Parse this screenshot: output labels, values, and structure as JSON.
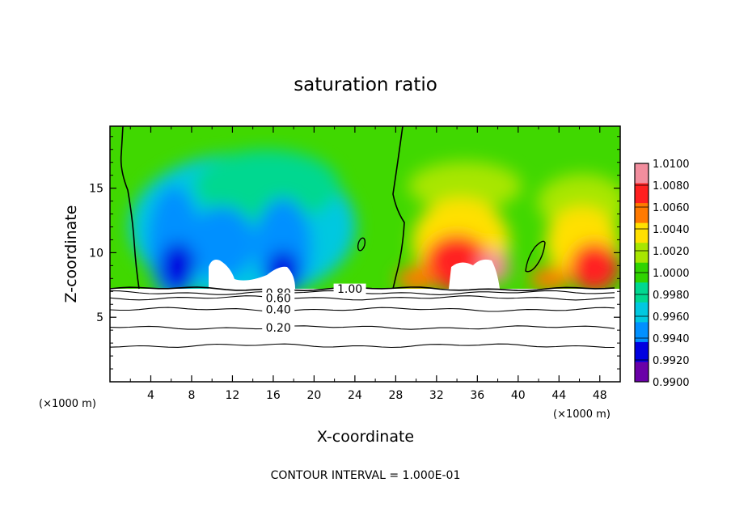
{
  "chart_data": {
    "type": "heatmap",
    "title": "saturation ratio",
    "xlabel": "X-coordinate",
    "ylabel": "Z-coordinate",
    "x_unit": "(×1000 m)",
    "z_unit": "(×1000 m)",
    "xlim": [
      0,
      50
    ],
    "ylim": [
      0,
      19.8
    ],
    "x_ticks": [
      4,
      8,
      12,
      16,
      20,
      24,
      28,
      32,
      36,
      40,
      44,
      48
    ],
    "y_ticks": [
      5,
      10,
      15
    ],
    "note": "CONTOUR INTERVAL = 1.000E-01",
    "colorbar": {
      "range": [
        0.99,
        1.01
      ],
      "labels": [
        "1.0100",
        "1.0080",
        "1.0060",
        "1.0040",
        "1.0020",
        "1.0000",
        "0.9980",
        "0.9960",
        "0.9940",
        "0.9920",
        "0.9900"
      ],
      "colors": [
        "#f28e9e",
        "#ff2020",
        "#ff7a00",
        "#ffe000",
        "#a8e600",
        "#30d400",
        "#00d890",
        "#00c8e0",
        "#0090ff",
        "#0000e0",
        "#6a00a8"
      ]
    },
    "contour_lines": [
      {
        "label": "1.00",
        "z": 7.2,
        "x": 23.5
      },
      {
        "label": "0.80",
        "z": 6.9,
        "x": 16.5
      },
      {
        "label": "0.60",
        "z": 6.5,
        "x": 16.5
      },
      {
        "label": "0.40",
        "z": 5.6,
        "x": 16.5
      },
      {
        "label": "0.20",
        "z": 4.2,
        "x": 16.5
      },
      {
        "label": "",
        "z": 2.8,
        "x": null
      }
    ]
  }
}
